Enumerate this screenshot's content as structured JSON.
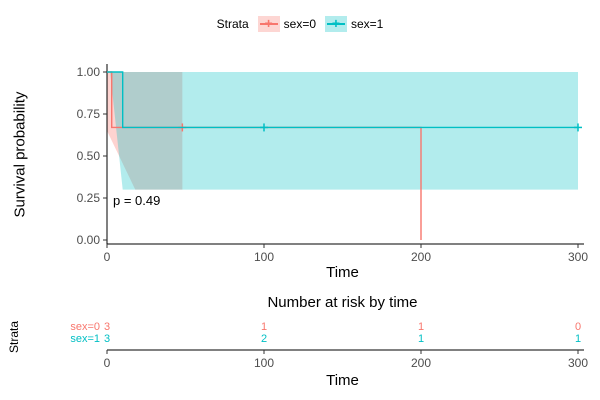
{
  "legend": {
    "title": "Strata",
    "items": [
      {
        "label": "sex=0",
        "color": "#F8766D",
        "tint": "rgba(248,118,109,0.30)"
      },
      {
        "label": "sex=1",
        "color": "#00BFC4",
        "tint": "rgba(0,191,196,0.30)"
      }
    ]
  },
  "chart_data": {
    "type": "line",
    "subtype": "kaplan-meier-survival",
    "xlabel": "Time",
    "ylabel": "Survival probability",
    "xlim": [
      0,
      300
    ],
    "ylim": [
      0,
      1
    ],
    "xticks": [
      0,
      100,
      200,
      300
    ],
    "yticks": [
      {
        "v": 1.0,
        "label": "1.00"
      },
      {
        "v": 0.75,
        "label": "0.75"
      },
      {
        "v": 0.5,
        "label": "0.50"
      },
      {
        "v": 0.25,
        "label": "0.25"
      },
      {
        "v": 0.0,
        "label": "0.00"
      }
    ],
    "pvalue_label": "p = 0.49",
    "legend_position": "top",
    "grid": false,
    "series": [
      {
        "name": "sex=0",
        "color": "#F8766D",
        "band_color": "rgba(248,118,109,0.32)",
        "steps": [
          [
            0,
            1.0
          ],
          [
            3,
            1.0
          ],
          [
            3,
            0.67
          ],
          [
            200,
            0.67
          ],
          [
            200,
            0.0
          ]
        ],
        "censor_points": [
          [
            48,
            0.67
          ]
        ],
        "ci_polygon": [
          [
            0,
            1.0
          ],
          [
            48,
            1.0
          ],
          [
            48,
            0.3
          ],
          [
            18,
            0.3
          ],
          [
            0,
            0.65
          ]
        ]
      },
      {
        "name": "sex=1",
        "color": "#00BFC4",
        "band_color": "rgba(0,191,196,0.30)",
        "steps": [
          [
            0,
            1.0
          ],
          [
            10,
            1.0
          ],
          [
            10,
            0.67
          ],
          [
            300,
            0.67
          ]
        ],
        "censor_points": [
          [
            100,
            0.67
          ],
          [
            300,
            0.67
          ]
        ],
        "ci_polygon": [
          [
            2,
            1.0
          ],
          [
            300,
            1.0
          ],
          [
            300,
            0.3
          ],
          [
            10,
            0.3
          ]
        ]
      }
    ],
    "risk_table": {
      "title": "Number at risk by time",
      "ylabel": "Strata",
      "xlabel": "Time",
      "times": [
        0,
        100,
        200,
        300
      ],
      "rows": [
        {
          "name": "sex=0",
          "color": "#F8766D",
          "values": [
            3,
            1,
            1,
            0
          ]
        },
        {
          "name": "sex=1",
          "color": "#00BFC4",
          "values": [
            3,
            2,
            1,
            1
          ]
        }
      ]
    }
  }
}
